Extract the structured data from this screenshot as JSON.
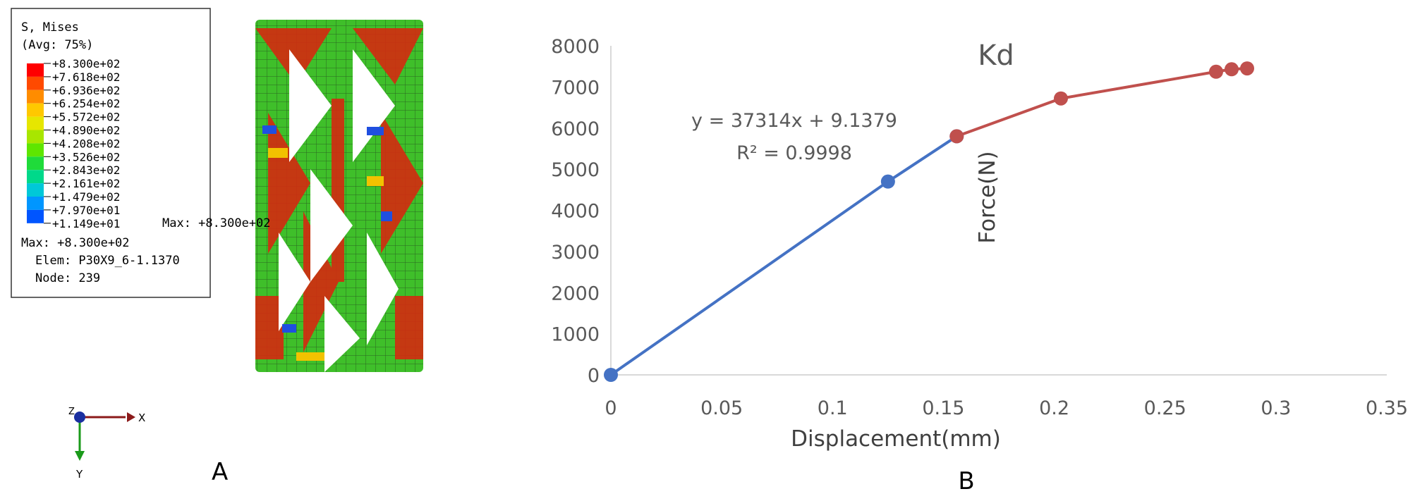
{
  "panel_a": {
    "label": "A",
    "legend": {
      "title_line1": "S, Mises",
      "title_line2": "(Avg: 75%)",
      "levels": [
        "+8.300e+02",
        "+7.618e+02",
        "+6.936e+02",
        "+6.254e+02",
        "+5.572e+02",
        "+4.890e+02",
        "+4.208e+02",
        "+3.526e+02",
        "+2.843e+02",
        "+2.161e+02",
        "+1.479e+02",
        "+7.970e+01",
        "+1.149e+01"
      ],
      "colors": [
        "#ff0000",
        "#ff4a00",
        "#ff8c00",
        "#ffc800",
        "#e6e600",
        "#a8e600",
        "#5ee600",
        "#1fdb3a",
        "#00d98a",
        "#00c8d8",
        "#0096ff",
        "#0055ff",
        "#0000ff"
      ],
      "max_line": "Max: +8.300e+02",
      "elem_line": "Elem: P30X9_6-1.1370",
      "node_line": "Node: 239"
    },
    "max_callout": "Max: +8.300e+02",
    "axis_x": "X",
    "axis_y": "Y",
    "axis_z": "Z"
  },
  "panel_b": {
    "label": "B"
  },
  "chart_data": {
    "type": "line",
    "title": "Kd",
    "xlabel": "Displacement(mm)",
    "ylabel": "Force(N)",
    "xlim": [
      0,
      0.35
    ],
    "ylim": [
      0,
      8000
    ],
    "x_ticks": [
      0,
      0.05,
      0.1,
      0.15,
      0.2,
      0.25,
      0.3,
      0.35
    ],
    "x_tick_labels": [
      "0",
      "0.05",
      "0.1",
      "0.15",
      "0.2",
      "0.25",
      "0.3",
      "0.35"
    ],
    "y_ticks": [
      0,
      1000,
      2000,
      3000,
      4000,
      5000,
      6000,
      7000,
      8000
    ],
    "y_tick_labels": [
      "0",
      "1000",
      "2000",
      "3000",
      "4000",
      "5000",
      "6000",
      "7000",
      "8000"
    ],
    "grid": false,
    "series": [
      {
        "color": "#4472c4",
        "x": [
          0,
          0.125,
          0.156
        ],
        "y": [
          0,
          4700,
          5800
        ]
      },
      {
        "color": "#c0504d",
        "x": [
          0.156,
          0.203,
          0.273,
          0.28,
          0.287
        ],
        "y": [
          5800,
          6720,
          7370,
          7430,
          7450
        ]
      }
    ],
    "trendline": {
      "equation": "y = 37314x + 9.1379",
      "r2": "R² = 0.9998"
    }
  }
}
